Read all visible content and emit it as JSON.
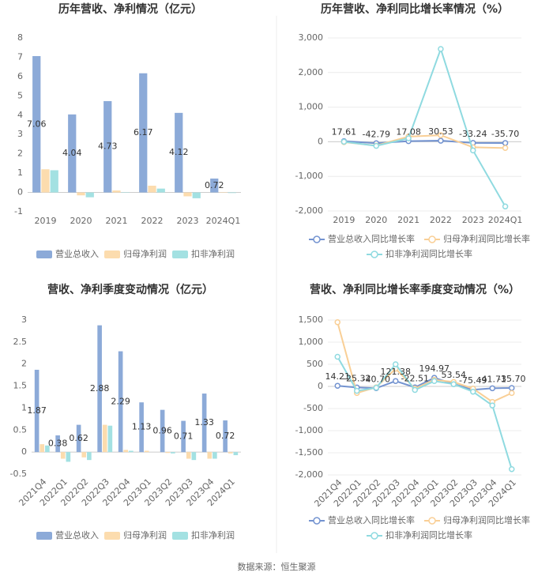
{
  "chart_data": [
    {
      "type": "bar",
      "title": "历年营收、净利情况（亿元）",
      "categories": [
        "2019",
        "2020",
        "2021",
        "2022",
        "2023",
        "2024Q1"
      ],
      "series": [
        {
          "name": "营业总收入",
          "color": "#8caad8",
          "values": [
            7.06,
            4.04,
            4.73,
            6.17,
            4.12,
            0.72
          ],
          "value_labels": [
            "7.06",
            "4.04",
            "4.73",
            "6.17",
            "4.12",
            "0.72"
          ]
        },
        {
          "name": "归母净利润",
          "color": "#fcdcae",
          "values": [
            1.2,
            -0.15,
            0.1,
            0.35,
            -0.2,
            0.02
          ]
        },
        {
          "name": "扣非净利润",
          "color": "#a3e1e2",
          "values": [
            1.15,
            -0.25,
            0.02,
            0.2,
            -0.3,
            -0.03
          ]
        }
      ],
      "ylim": [
        -1,
        8
      ],
      "yticks": [
        -1,
        0,
        1,
        2,
        3,
        4,
        5,
        6,
        7,
        8
      ],
      "grid": false
    },
    {
      "type": "line",
      "title": "历年营收、净利同比增长率情况（%）",
      "categories": [
        "2019",
        "2020",
        "2021",
        "2022",
        "2023",
        "2024Q1"
      ],
      "series": [
        {
          "name": "营业总收入同比增长率",
          "color": "#7393d0",
          "values": [
            17.61,
            -42.79,
            17.08,
            30.53,
            -33.24,
            -35.7
          ],
          "value_labels": [
            "17.61",
            "-42.79",
            "17.08",
            "30.53",
            "-33.24",
            "-35.70"
          ]
        },
        {
          "name": "归母净利润同比增长率",
          "color": "#f9cf96",
          "values": [
            -10,
            -110,
            150,
            190,
            -160,
            -180
          ]
        },
        {
          "name": "扣非净利润同比增长率",
          "color": "#8fdae0",
          "values": [
            0,
            -120,
            100,
            2680,
            -250,
            -1870
          ]
        }
      ],
      "ylim": [
        -2000,
        3000
      ],
      "yticks": [
        {
          "value": -2000,
          "label": "-2,000"
        },
        {
          "value": -1000,
          "label": "-1,000"
        },
        0,
        {
          "value": 1000,
          "label": "1,000"
        },
        {
          "value": 2000,
          "label": "2,000"
        },
        {
          "value": 3000,
          "label": "3,000"
        }
      ],
      "grid": true
    },
    {
      "type": "bar",
      "title": "营收、净利季度变动情况（亿元）",
      "categories": [
        "2021Q4",
        "2022Q1",
        "2022Q2",
        "2022Q3",
        "2022Q4",
        "2023Q1",
        "2023Q2",
        "2023Q3",
        "2023Q4",
        "2024Q1"
      ],
      "series": [
        {
          "name": "营业总收入",
          "color": "#8caad8",
          "values": [
            1.87,
            0.38,
            0.62,
            2.88,
            2.29,
            1.13,
            0.96,
            0.71,
            1.33,
            0.72
          ],
          "value_labels": [
            "1.87",
            "0.38",
            "0.62",
            "2.88",
            "2.29",
            "1.13",
            "0.96",
            "0.71",
            "1.33",
            "0.72"
          ]
        },
        {
          "name": "归母净利润",
          "color": "#fcdcae",
          "values": [
            0.18,
            -0.15,
            -0.12,
            0.62,
            0.05,
            0.03,
            -0.02,
            -0.15,
            -0.15,
            -0.03
          ]
        },
        {
          "name": "扣非净利润",
          "color": "#a3e1e2",
          "values": [
            0.15,
            -0.22,
            -0.18,
            0.6,
            0.03,
            0.0,
            -0.03,
            -0.18,
            -0.15,
            -0.07
          ]
        }
      ],
      "ylim": [
        -0.5,
        3
      ],
      "yticks": [
        -0.5,
        0,
        0.5,
        1,
        1.5,
        2,
        2.5,
        3
      ],
      "grid": false
    },
    {
      "type": "line",
      "title": "营收、净利同比增长率季度变动情况（%）",
      "categories": [
        "2021Q4",
        "2022Q1",
        "2022Q2",
        "2022Q3",
        "2022Q4",
        "2023Q1",
        "2023Q2",
        "2023Q3",
        "2023Q4",
        "2024Q1"
      ],
      "series": [
        {
          "name": "营业总收入同比增长率",
          "color": "#7393d0",
          "values": [
            14.21,
            -25.32,
            -40.7,
            121.38,
            -22.51,
            194.97,
            53.54,
            -75.49,
            -41.71,
            -35.7
          ],
          "value_labels": [
            "14.21",
            "-25.32",
            "-40.70",
            "121.38",
            "-22.51",
            "194.97",
            "53.54",
            "-75.49",
            "-41.71",
            "-35.70"
          ]
        },
        {
          "name": "归母净利润同比增长率",
          "color": "#f9cf96",
          "values": [
            1450,
            -150,
            -20,
            400,
            -50,
            150,
            100,
            -50,
            -350,
            -150
          ]
        },
        {
          "name": "扣非净利润同比增长率",
          "color": "#8fdae0",
          "values": [
            670,
            -100,
            -30,
            500,
            -80,
            120,
            50,
            -120,
            -430,
            -1870
          ]
        }
      ],
      "ylim": [
        -2000,
        1500
      ],
      "yticks": [
        {
          "value": -2000,
          "label": "-2,000"
        },
        {
          "value": -1500,
          "label": "-1,500"
        },
        {
          "value": -1000,
          "label": "-1,000"
        },
        -500,
        0,
        500,
        {
          "value": 1000,
          "label": "1,000"
        },
        {
          "value": 1500,
          "label": "1,500"
        }
      ],
      "grid": true
    }
  ],
  "source": "数据来源：恒生聚源"
}
